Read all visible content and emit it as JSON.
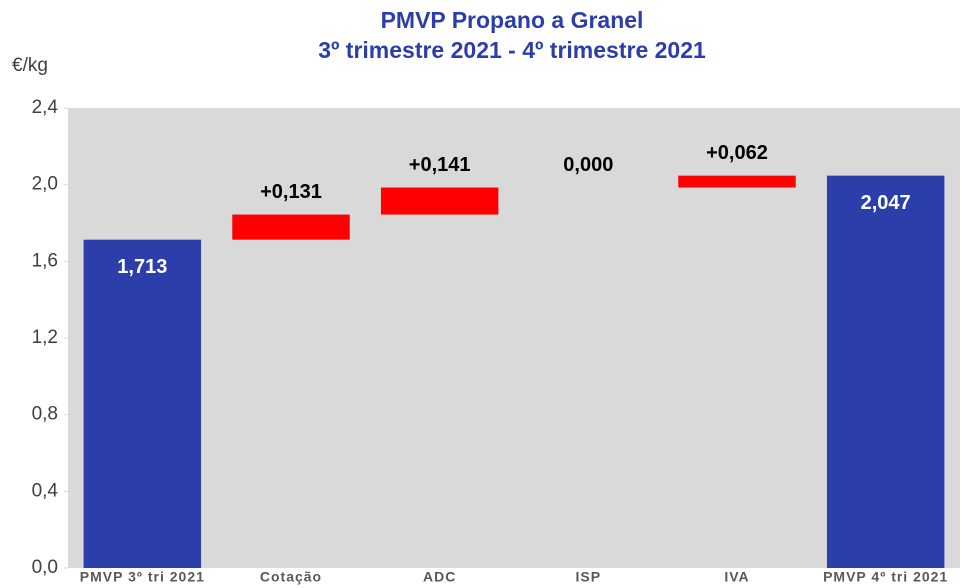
{
  "chart_data": {
    "type": "waterfall",
    "title": "PMVP Propano a Granel",
    "subtitle": "3º trimestre 2021 - 4º trimestre 2021",
    "y_label": "€/kg",
    "categories": [
      "PMVP 3º tri 2021",
      "Cotação",
      "ADC",
      "ISP",
      "IVA",
      "PMVP 4º tri 2021"
    ],
    "values": [
      1.713,
      0.131,
      0.141,
      0.0,
      0.062,
      2.047
    ],
    "value_labels": [
      "1,713",
      "+0,131",
      "+0,141",
      "0,000",
      "+0,062",
      "2,047"
    ],
    "colors": [
      "#2b3eaa",
      "#ff0000",
      "#ff0000",
      "#ff0000",
      "#ff0000",
      "#2b3eaa"
    ],
    "ylim": [
      0,
      2.4
    ],
    "yticks": [
      {
        "value": 0,
        "label": "0,0"
      },
      {
        "value": 0.4,
        "label": "0,4"
      },
      {
        "value": 0.8,
        "label": "0,8"
      },
      {
        "value": 1.2,
        "label": "1,2"
      },
      {
        "value": 1.6,
        "label": "1,6"
      },
      {
        "value": 2.0,
        "label": "2,0"
      },
      {
        "value": 2.4,
        "label": "2,4"
      }
    ],
    "plot_background": "#d9d9d9"
  }
}
